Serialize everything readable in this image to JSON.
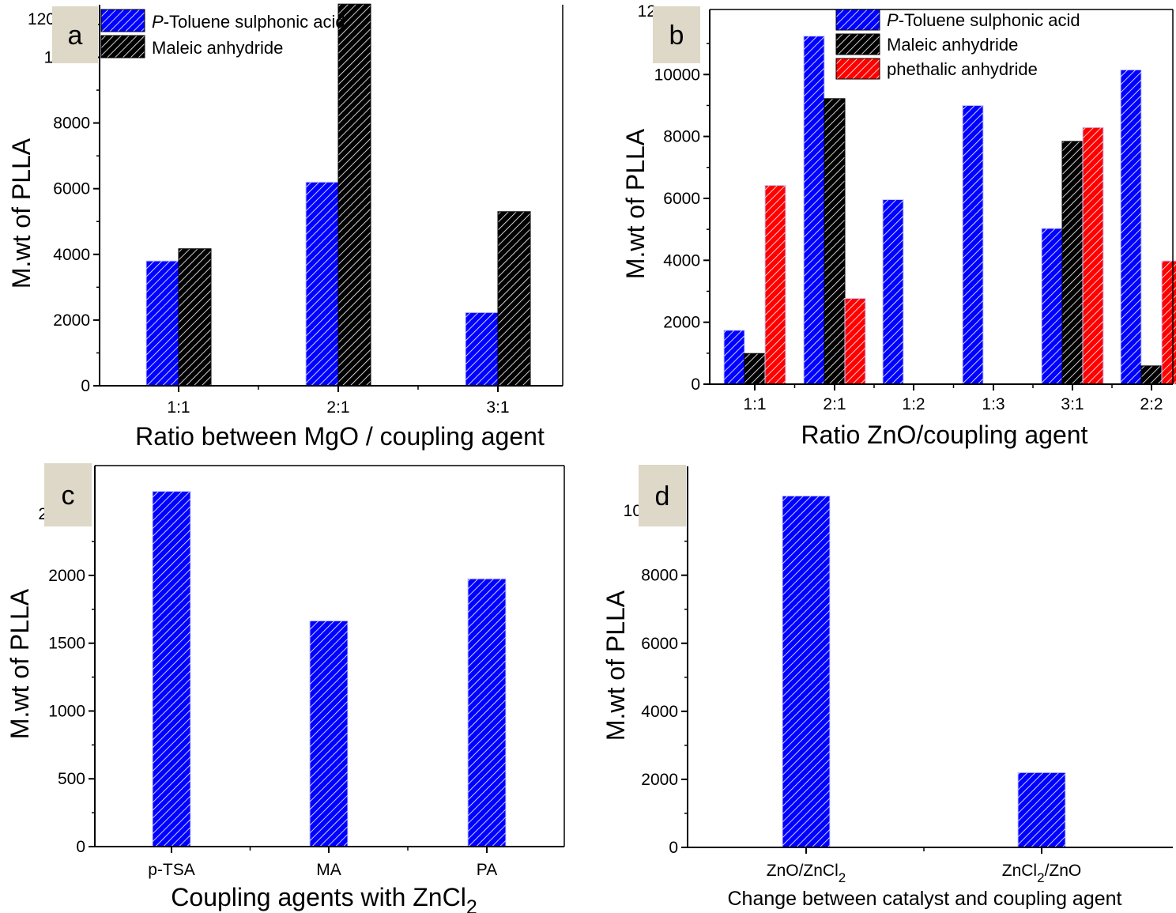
{
  "chart_data": [
    {
      "type": "bar",
      "panel_label": "a",
      "categories": [
        "1:1",
        "2:1",
        "3:1"
      ],
      "series": [
        {
          "name_italic": "P",
          "name": "-Toluene sulphonic acid",
          "values": [
            3800,
            6200,
            2230
          ],
          "color": "#0000ff"
        },
        {
          "name": "Maleic anhydride",
          "values": [
            4170,
            11620,
            5300
          ],
          "color": "#000000"
        }
      ],
      "xlabel": "Ratio between MgO / coupling agent",
      "ylabel": "M.wt of PLLA",
      "ylim": [
        0,
        11600
      ],
      "yticks": [
        "0",
        "2000",
        "4000",
        "6000",
        "8000",
        "10000"
      ],
      "ytick_top_partial": "120",
      "legend": "top-left"
    },
    {
      "type": "bar",
      "panel_label": "b",
      "categories": [
        "1:1",
        "2:1",
        "1:2",
        "1:3",
        "3:1",
        "2:2"
      ],
      "series": [
        {
          "name_italic": "P",
          "name": "-Toluene sulphonic acid",
          "values": [
            1740,
            11240,
            5960,
            9000,
            5030,
            10150
          ],
          "color": "#0000ff"
        },
        {
          "name": "Maleic anhydride",
          "values": [
            990,
            9220,
            null,
            null,
            7840,
            590
          ],
          "color": "#000000"
        },
        {
          "name": "phethalic anhydride",
          "values": [
            6420,
            2770,
            null,
            null,
            8290,
            3980
          ],
          "color": "#ff0000"
        }
      ],
      "xlabel": "Ratio ZnO/coupling agent",
      "ylabel": "M.wt of PLLA",
      "ylim": [
        0,
        12100
      ],
      "yticks": [
        "0",
        "2000",
        "4000",
        "6000",
        "8000",
        "10000"
      ],
      "ytick_top_partial": "12",
      "legend": "top-right"
    },
    {
      "type": "bar",
      "panel_label": "c",
      "categories": [
        "p-TSA",
        "MA",
        "PA"
      ],
      "series": [
        {
          "name": "M.wt",
          "values": [
            2620,
            1665,
            1975
          ],
          "color": "#0000ff"
        }
      ],
      "xlabel_main": "Coupling agents with ZnCl",
      "xlabel_sub": "2",
      "ylabel": "M.wt of PLLA",
      "ylim": [
        0,
        2810
      ],
      "yticks": [
        "0",
        "500",
        "1000",
        "1500",
        "2000"
      ],
      "ytick_top_partial": "2"
    },
    {
      "type": "bar",
      "panel_label": "d",
      "categories": [
        "ZnO/ZnCl2",
        "ZnCl2/ZnO"
      ],
      "category_parts": [
        [
          "ZnO/ZnCl",
          "2",
          ""
        ],
        [
          "ZnCl",
          "2",
          "/ZnO"
        ]
      ],
      "series": [
        {
          "name": "M.wt",
          "values": [
            10330,
            2200
          ],
          "color": "#0000ff"
        }
      ],
      "xlabel": "Change between catalyst and coupling agent",
      "ylabel": "M.wt of PLLA",
      "ylim": [
        0,
        11200
      ],
      "yticks": [
        "0",
        "2000",
        "4000",
        "6000",
        "8000"
      ],
      "ytick_top_partial": "10"
    }
  ]
}
